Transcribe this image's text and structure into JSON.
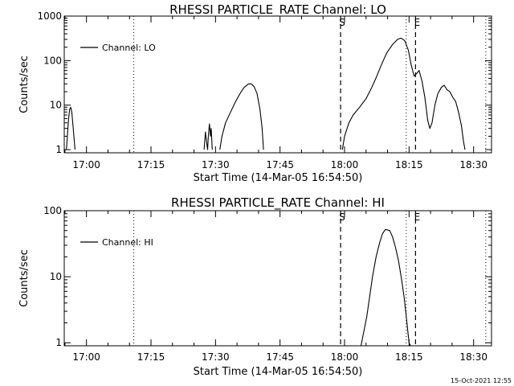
{
  "footer": {
    "stamp": "15-Oct-2021 12:55"
  },
  "chart_data": [
    {
      "type": "line",
      "title": "RHESSI PARTICLE_RATE Channel: LO",
      "xlabel": "Start Time (14-Mar-05 16:54:50)",
      "ylabel": "Counts/sec",
      "yscale": "log",
      "ylim": [
        0.85,
        1000
      ],
      "xlim": [
        "16:54:50",
        "18:34:10"
      ],
      "x_ticks": [
        "17:00",
        "17:15",
        "17:30",
        "17:45",
        "18:00",
        "18:15",
        "18:30"
      ],
      "y_ticks": [
        "1",
        "10",
        "100",
        "1000"
      ],
      "legend": {
        "entries": [
          "Channel: LO"
        ],
        "position": "top-left"
      },
      "markers": [
        {
          "label": "S",
          "time": "17:59:05",
          "style": "dashed"
        },
        {
          "label": "E",
          "time": "18:16:30",
          "style": "dashed"
        },
        {
          "label": "",
          "time": "17:11:00",
          "style": "dotted"
        },
        {
          "label": "",
          "time": "18:14:20",
          "style": "dotted"
        },
        {
          "label": "",
          "time": "18:32:50",
          "style": "dotted"
        }
      ],
      "series": [
        {
          "name": "Channel: LO",
          "segments": [
            [
              [
                "16:55:20",
                1
              ],
              [
                "16:55:50",
                5
              ],
              [
                "16:56:05",
                8
              ],
              [
                "16:56:20",
                9
              ],
              [
                "16:56:35",
                7
              ],
              [
                "16:56:55",
                3
              ],
              [
                "16:57:20",
                1
              ]
            ],
            [
              [
                "17:27:20",
                1
              ],
              [
                "17:27:40",
                2.5
              ],
              [
                "17:27:55",
                1.5
              ],
              [
                "17:28:10",
                1
              ],
              [
                "17:28:20",
                2
              ],
              [
                "17:28:35",
                3.8
              ],
              [
                "17:28:50",
                2
              ],
              [
                "17:29:00",
                3
              ],
              [
                "17:29:15",
                1
              ]
            ],
            [
              [
                "17:31:00",
                1
              ],
              [
                "17:31:30",
                2
              ],
              [
                "17:32:20",
                4
              ],
              [
                "17:33:30",
                7
              ],
              [
                "17:34:40",
                12
              ],
              [
                "17:35:40",
                18
              ],
              [
                "17:36:40",
                25
              ],
              [
                "17:37:40",
                30
              ],
              [
                "17:38:20",
                30
              ],
              [
                "17:39:00",
                26
              ],
              [
                "17:39:40",
                18
              ],
              [
                "17:40:20",
                8
              ],
              [
                "17:40:50",
                3
              ],
              [
                "17:41:10",
                1
              ]
            ],
            [
              [
                "17:59:30",
                1
              ],
              [
                "18:00:00",
                2
              ],
              [
                "18:01:00",
                4
              ],
              [
                "18:02:00",
                6
              ],
              [
                "18:03:30",
                9
              ],
              [
                "18:05:00",
                14
              ],
              [
                "18:06:20",
                25
              ],
              [
                "18:07:30",
                45
              ],
              [
                "18:08:40",
                85
              ],
              [
                "18:09:50",
                150
              ],
              [
                "18:11:10",
                230
              ],
              [
                "18:12:20",
                300
              ],
              [
                "18:13:10",
                320
              ],
              [
                "18:14:00",
                280
              ],
              [
                "18:14:50",
                170
              ],
              [
                "18:15:30",
                80
              ],
              [
                "18:16:10",
                45
              ],
              [
                "18:16:40",
                50
              ],
              [
                "18:17:20",
                60
              ],
              [
                "18:18:00",
                35
              ],
              [
                "18:18:40",
                15
              ],
              [
                "18:19:20",
                4.5
              ],
              [
                "18:19:50",
                3
              ],
              [
                "18:20:20",
                4
              ],
              [
                "18:21:00",
                10
              ],
              [
                "18:21:40",
                18
              ],
              [
                "18:22:30",
                25
              ],
              [
                "18:23:10",
                28
              ],
              [
                "18:23:50",
                22
              ],
              [
                "18:24:30",
                20
              ],
              [
                "18:25:10",
                15
              ],
              [
                "18:25:50",
                12
              ],
              [
                "18:26:30",
                7
              ],
              [
                "18:27:10",
                3.5
              ],
              [
                "18:27:40",
                1.5
              ],
              [
                "18:28:00",
                1
              ]
            ]
          ]
        }
      ]
    },
    {
      "type": "line",
      "title": "RHESSI PARTICLE_RATE Channel: HI",
      "xlabel": "Start Time (14-Mar-05 16:54:50)",
      "ylabel": "Counts/sec",
      "yscale": "log",
      "ylim": [
        0.9,
        100
      ],
      "xlim": [
        "16:54:50",
        "18:34:10"
      ],
      "x_ticks": [
        "17:00",
        "17:15",
        "17:30",
        "17:45",
        "18:00",
        "18:15",
        "18:30"
      ],
      "y_ticks": [
        "1",
        "10",
        "100"
      ],
      "legend": {
        "entries": [
          "Channel: HI"
        ],
        "position": "top-left"
      },
      "markers": [
        {
          "label": "S",
          "time": "17:59:05",
          "style": "dashed"
        },
        {
          "label": "E",
          "time": "18:16:30",
          "style": "dashed"
        },
        {
          "label": "",
          "time": "17:11:00",
          "style": "dotted"
        },
        {
          "label": "",
          "time": "18:14:20",
          "style": "dotted"
        },
        {
          "label": "",
          "time": "18:32:50",
          "style": "dotted"
        }
      ],
      "series": [
        {
          "name": "Channel: HI",
          "segments": [
            [
              [
                "18:03:50",
                0.9
              ],
              [
                "18:04:30",
                1.5
              ],
              [
                "18:05:10",
                2.5
              ],
              [
                "18:05:50",
                5
              ],
              [
                "18:06:30",
                10
              ],
              [
                "18:07:20",
                20
              ],
              [
                "18:08:10",
                33
              ],
              [
                "18:08:50",
                45
              ],
              [
                "18:09:30",
                52
              ],
              [
                "18:10:30",
                50
              ],
              [
                "18:11:10",
                40
              ],
              [
                "18:11:50",
                28
              ],
              [
                "18:12:30",
                18
              ],
              [
                "18:13:10",
                10
              ],
              [
                "18:13:50",
                5
              ],
              [
                "18:14:30",
                2
              ],
              [
                "18:15:00",
                1
              ],
              [
                "18:15:20",
                0.9
              ]
            ]
          ]
        }
      ]
    }
  ]
}
